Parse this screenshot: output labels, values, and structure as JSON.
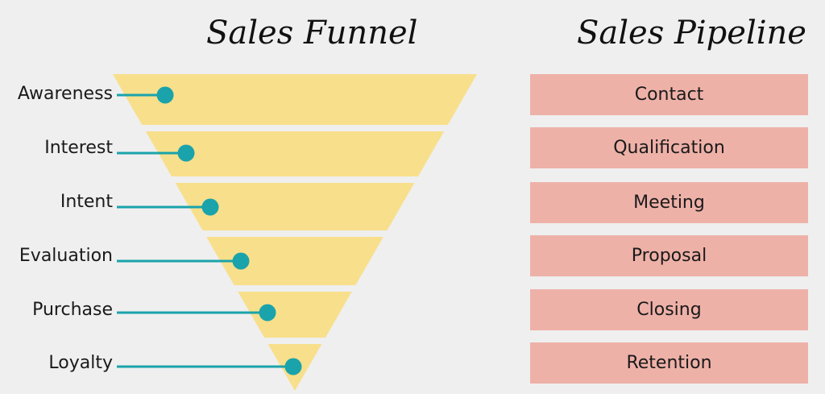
{
  "funnel": {
    "title": "Sales Funnel",
    "stages": [
      "Awareness",
      "Interest",
      "Intent",
      "Evaluation",
      "Purchase",
      "Loyalty"
    ]
  },
  "pipeline": {
    "title": "Sales Pipeline",
    "stages": [
      "Contact",
      "Qualification",
      "Meeting",
      "Proposal",
      "Closing",
      "Retention"
    ]
  },
  "colors": {
    "background": "#efefef",
    "funnel_fill": "#f8df8b",
    "connector": "#1aa3ab",
    "pipeline_fill": "#eeb1a8"
  }
}
